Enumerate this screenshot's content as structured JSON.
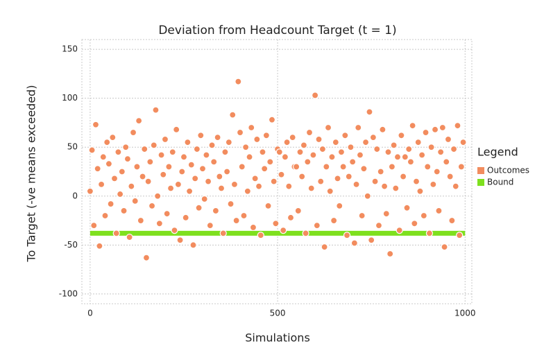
{
  "chart_data": {
    "type": "scatter",
    "title": "Deviation from Headcount Target (t = 1)",
    "x_label": "Simulations",
    "y_label": "To Target (-ve means exceeded)",
    "legend_title": "Legend",
    "legend_position": "right",
    "grid": true,
    "xlim": [
      -22,
      1018
    ],
    "ylim": [
      -110,
      160
    ],
    "xticks": [
      0,
      500,
      1000
    ],
    "yticks": [
      -100,
      -50,
      0,
      50,
      100,
      150
    ],
    "series": [
      {
        "name": "Outcomes",
        "color": "#f28c5e",
        "style": "points",
        "x": [
          0,
          5,
          10,
          15,
          20,
          25,
          30,
          35,
          40,
          45,
          50,
          55,
          60,
          65,
          70,
          75,
          80,
          85,
          90,
          95,
          100,
          105,
          110,
          115,
          120,
          125,
          130,
          135,
          140,
          145,
          150,
          155,
          160,
          165,
          170,
          175,
          180,
          185,
          190,
          195,
          200,
          205,
          210,
          215,
          220,
          225,
          230,
          235,
          240,
          245,
          250,
          255,
          260,
          265,
          270,
          275,
          280,
          285,
          290,
          295,
          300,
          305,
          310,
          315,
          320,
          325,
          330,
          335,
          340,
          345,
          350,
          355,
          360,
          365,
          370,
          375,
          380,
          385,
          390,
          395,
          400,
          405,
          410,
          415,
          420,
          425,
          430,
          435,
          440,
          445,
          450,
          455,
          460,
          465,
          470,
          475,
          480,
          485,
          490,
          495,
          500,
          505,
          510,
          515,
          520,
          525,
          530,
          535,
          540,
          545,
          550,
          555,
          560,
          565,
          570,
          575,
          580,
          585,
          590,
          595,
          600,
          605,
          610,
          615,
          620,
          625,
          630,
          635,
          640,
          645,
          650,
          655,
          660,
          665,
          670,
          675,
          680,
          685,
          690,
          695,
          700,
          705,
          710,
          715,
          720,
          725,
          730,
          735,
          740,
          745,
          750,
          755,
          760,
          765,
          770,
          775,
          780,
          785,
          790,
          795,
          800,
          805,
          810,
          815,
          820,
          825,
          830,
          835,
          840,
          845,
          850,
          855,
          860,
          865,
          870,
          875,
          880,
          885,
          890,
          895,
          900,
          905,
          910,
          915,
          920,
          925,
          930,
          935,
          940,
          945,
          950,
          955,
          960,
          965,
          970,
          975,
          980,
          985,
          990,
          995
        ],
        "values": [
          5,
          47,
          -30,
          73,
          28,
          -51,
          12,
          40,
          -20,
          55,
          33,
          -8,
          60,
          18,
          -38,
          45,
          2,
          25,
          -15,
          50,
          38,
          -42,
          10,
          65,
          -5,
          30,
          77,
          -25,
          20,
          48,
          -63,
          15,
          35,
          -10,
          52,
          88,
          0,
          -28,
          42,
          22,
          58,
          -18,
          30,
          8,
          45,
          -35,
          68,
          12,
          -45,
          25,
          40,
          -22,
          55,
          5,
          32,
          -50,
          18,
          48,
          -12,
          62,
          28,
          -3,
          42,
          15,
          -30,
          52,
          35,
          -15,
          60,
          20,
          8,
          -38,
          45,
          25,
          55,
          -8,
          83,
          12,
          -25,
          117,
          65,
          30,
          -20,
          50,
          5,
          40,
          70,
          -32,
          18,
          58,
          10,
          -40,
          45,
          28,
          62,
          -10,
          35,
          78,
          15,
          -28,
          48,
          45,
          22,
          -35,
          40,
          55,
          10,
          -22,
          60,
          30,
          30,
          -15,
          45,
          20,
          52,
          -38,
          35,
          65,
          8,
          42,
          103,
          -30,
          58,
          15,
          48,
          -52,
          30,
          70,
          5,
          40,
          -25,
          55,
          18,
          -10,
          45,
          30,
          62,
          -40,
          20,
          50,
          35,
          -48,
          12,
          70,
          42,
          -20,
          28,
          55,
          0,
          86,
          -45,
          60,
          15,
          48,
          -30,
          25,
          68,
          10,
          -18,
          45,
          -59,
          30,
          52,
          8,
          40,
          -35,
          62,
          20,
          40,
          -12,
          48,
          35,
          72,
          -28,
          15,
          55,
          5,
          42,
          -20,
          65,
          30,
          -38,
          50,
          12,
          68,
          25,
          -15,
          45,
          70,
          -52,
          35,
          58,
          20,
          -25,
          48,
          10,
          72,
          -40,
          30,
          55
        ]
      },
      {
        "name": "Bound",
        "color": "#7ee01e",
        "style": "band",
        "x": [
          0,
          1000
        ],
        "values": [
          -38,
          -38
        ]
      }
    ]
  }
}
